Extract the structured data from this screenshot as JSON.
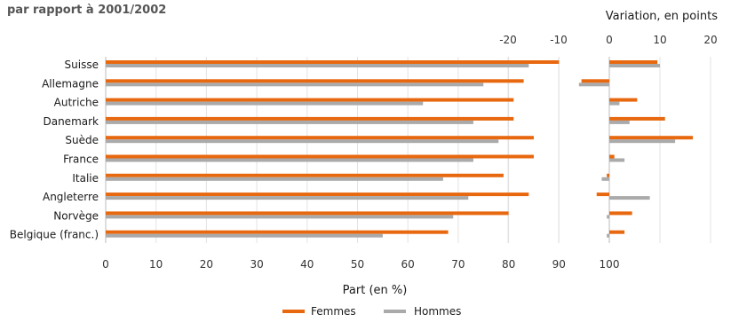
{
  "chart_data": [
    {
      "type": "bar",
      "orientation": "horizontal",
      "title": "par rapport à 2001/2002",
      "categories": [
        "Suisse",
        "Allemagne",
        "Autriche",
        "Danemark",
        "Suède",
        "France",
        "Italie",
        "Angleterre",
        "Norvège",
        "Belgique (franc.)"
      ],
      "series": [
        {
          "name": "Femmes",
          "color": "#e8680f",
          "values": [
            90,
            83,
            81,
            81,
            85,
            85,
            79,
            84,
            80,
            68
          ]
        },
        {
          "name": "Hommes",
          "color": "#aaaaaa",
          "values": [
            84,
            75,
            63,
            73,
            78,
            73,
            67,
            72,
            69,
            55
          ]
        }
      ],
      "xlabel": "Part (en %)",
      "xlim": [
        0,
        100
      ],
      "xticks": [
        "0",
        "10",
        "20",
        "30",
        "40",
        "50",
        "60",
        "70",
        "80",
        "90",
        "100"
      ],
      "grid": true,
      "legend": "bottom"
    },
    {
      "type": "bar",
      "orientation": "horizontal",
      "title": "Variation, en points",
      "series": [
        {
          "name": "Femmes",
          "color": "#e8680f",
          "values": [
            9.5,
            -5.5,
            5.5,
            11,
            16.5,
            1,
            -0.5,
            -2.5,
            4.5,
            3
          ]
        },
        {
          "name": "Hommes",
          "color": "#aaaaaa",
          "values": [
            10,
            -6,
            2,
            4,
            13,
            3,
            -1.5,
            8,
            -0.5,
            -0.5
          ]
        }
      ],
      "xlim": [
        -20,
        20
      ],
      "xticks": [
        "-20",
        "-10",
        "0",
        "10",
        "20"
      ],
      "grid": true
    }
  ]
}
